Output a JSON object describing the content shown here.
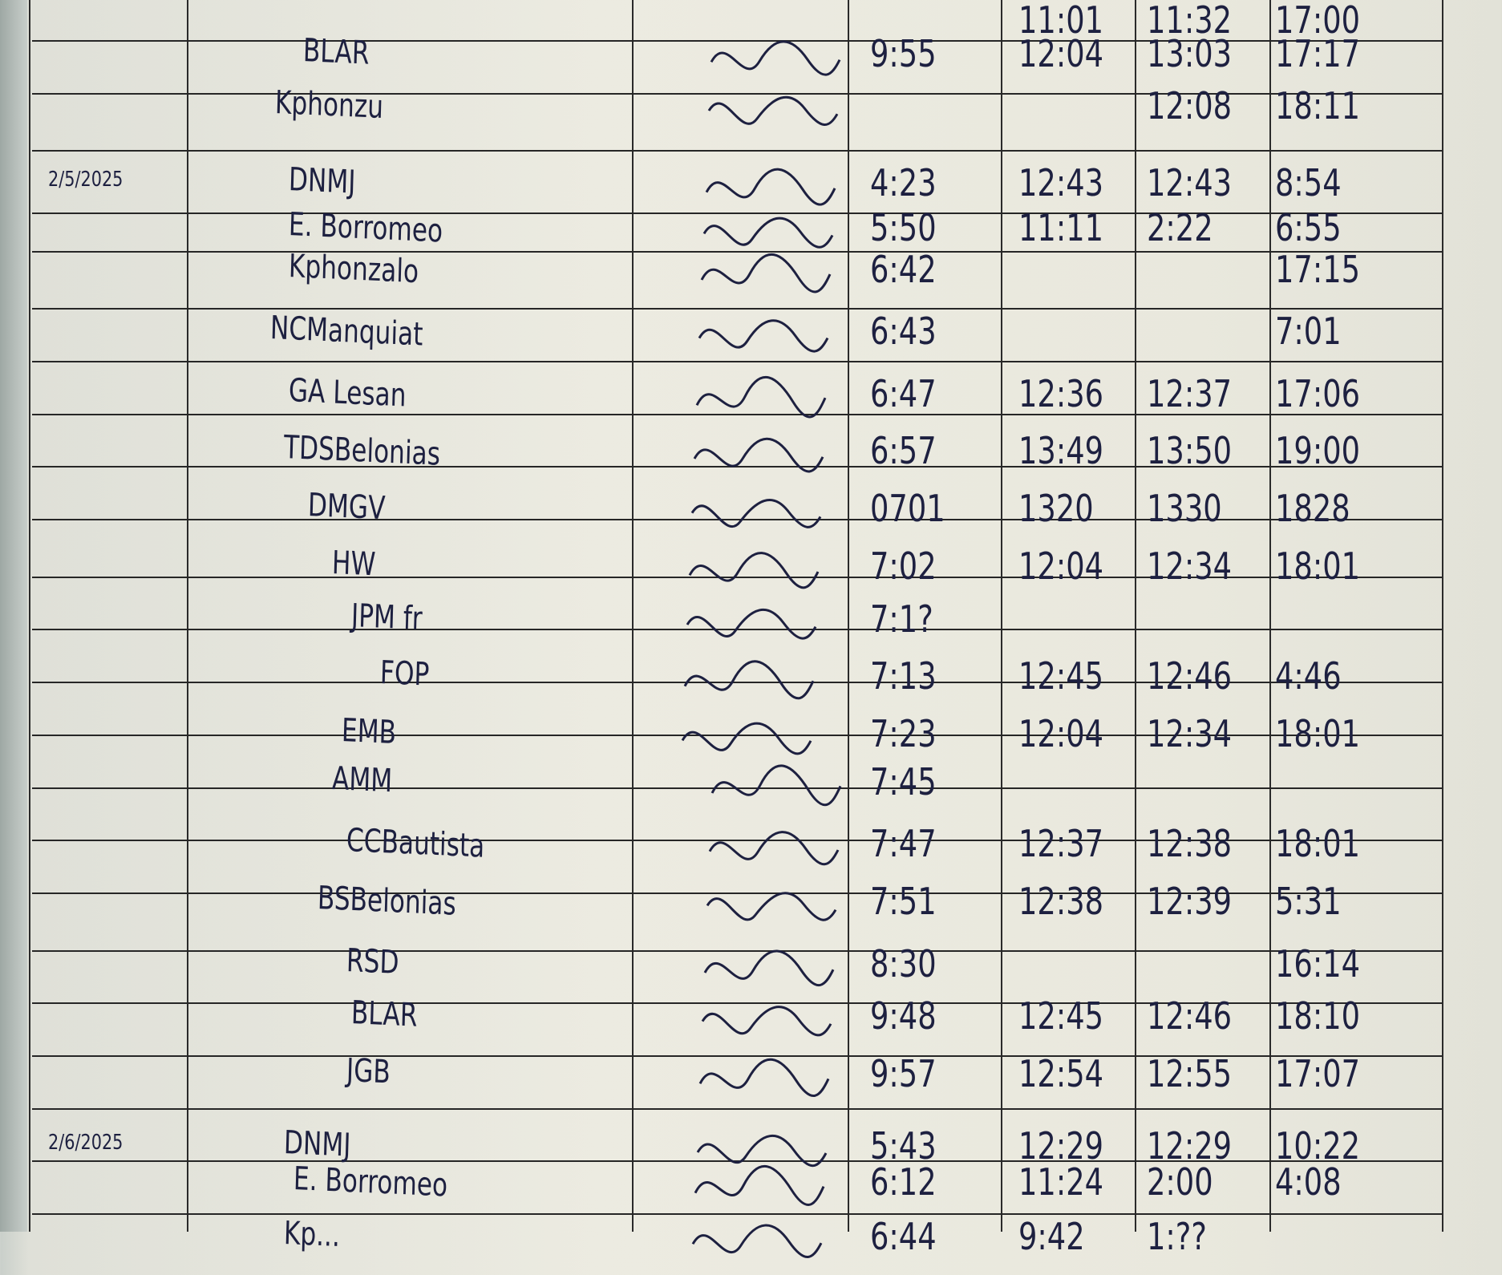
{
  "colors": {
    "ink": "#1d2040",
    "paper": "#ebeae0",
    "rule": "#262626"
  },
  "log": {
    "rows": [
      {
        "date": "",
        "name": "",
        "time_in_am": "",
        "time_out_am": "11:01",
        "time_in_pm": "11:32",
        "time_out_pm": "17:00"
      },
      {
        "date": "",
        "name": "BLAR",
        "time_in_am": "9:55",
        "time_out_am": "12:04",
        "time_in_pm": "13:03",
        "time_out_pm": "17:17"
      },
      {
        "date": "",
        "name": "Kphonzu",
        "time_in_am": "",
        "time_out_am": "",
        "time_in_pm": "12:08",
        "time_out_pm": "18:11"
      },
      {
        "date": "2/5/2025",
        "name": "DNMJ",
        "time_in_am": "4:23",
        "time_out_am": "12:43",
        "time_in_pm": "12:43",
        "time_out_pm": "8:54"
      },
      {
        "date": "",
        "name": "E. Borromeo",
        "time_in_am": "5:50",
        "time_out_am": "11:11",
        "time_in_pm": "2:22",
        "time_out_pm": "6:55"
      },
      {
        "date": "",
        "name": "Kphonzalo",
        "time_in_am": "6:42",
        "time_out_am": "",
        "time_in_pm": "",
        "time_out_pm": "17:15"
      },
      {
        "date": "",
        "name": "NCManquiat",
        "time_in_am": "6:43",
        "time_out_am": "",
        "time_in_pm": "",
        "time_out_pm": "7:01"
      },
      {
        "date": "",
        "name": "GA Lesan",
        "time_in_am": "6:47",
        "time_out_am": "12:36",
        "time_in_pm": "12:37",
        "time_out_pm": "17:06"
      },
      {
        "date": "",
        "name": "TDSBelonias",
        "time_in_am": "6:57",
        "time_out_am": "13:49",
        "time_in_pm": "13:50",
        "time_out_pm": "19:00"
      },
      {
        "date": "",
        "name": "DMGV",
        "time_in_am": "0701",
        "time_out_am": "1320",
        "time_in_pm": "1330",
        "time_out_pm": "1828"
      },
      {
        "date": "",
        "name": "HW",
        "time_in_am": "7:02",
        "time_out_am": "12:04",
        "time_in_pm": "12:34",
        "time_out_pm": "18:01"
      },
      {
        "date": "",
        "name": "JPM fr",
        "time_in_am": "7:1?",
        "time_out_am": "",
        "time_in_pm": "",
        "time_out_pm": ""
      },
      {
        "date": "",
        "name": "FOP",
        "time_in_am": "7:13",
        "time_out_am": "12:45",
        "time_in_pm": "12:46",
        "time_out_pm": "4:46"
      },
      {
        "date": "",
        "name": "EMB",
        "time_in_am": "7:23",
        "time_out_am": "12:04",
        "time_in_pm": "12:34",
        "time_out_pm": "18:01"
      },
      {
        "date": "",
        "name": "AMM",
        "time_in_am": "7:45",
        "time_out_am": "",
        "time_in_pm": "",
        "time_out_pm": ""
      },
      {
        "date": "",
        "name": "CCBautista",
        "time_in_am": "7:47",
        "time_out_am": "12:37",
        "time_in_pm": "12:38",
        "time_out_pm": "18:01"
      },
      {
        "date": "",
        "name": "BSBelonias",
        "time_in_am": "7:51",
        "time_out_am": "12:38",
        "time_in_pm": "12:39",
        "time_out_pm": "5:31"
      },
      {
        "date": "",
        "name": "RSD",
        "time_in_am": "8:30",
        "time_out_am": "",
        "time_in_pm": "",
        "time_out_pm": "16:14"
      },
      {
        "date": "",
        "name": "BLAR",
        "time_in_am": "9:48",
        "time_out_am": "12:45",
        "time_in_pm": "12:46",
        "time_out_pm": "18:10"
      },
      {
        "date": "",
        "name": "JGB",
        "time_in_am": "9:57",
        "time_out_am": "12:54",
        "time_in_pm": "12:55",
        "time_out_pm": "17:07"
      },
      {
        "date": "2/6/2025",
        "name": "DNMJ",
        "time_in_am": "5:43",
        "time_out_am": "12:29",
        "time_in_pm": "12:29",
        "time_out_pm": "10:22"
      },
      {
        "date": "",
        "name": "E. Borromeo",
        "time_in_am": "6:12",
        "time_out_am": "11:24",
        "time_in_pm": "2:00",
        "time_out_pm": "4:08"
      },
      {
        "date": "",
        "name": "Kp...",
        "time_in_am": "6:44",
        "time_out_am": "9:42",
        "time_in_pm": "1:??",
        "time_out_pm": ""
      }
    ]
  }
}
